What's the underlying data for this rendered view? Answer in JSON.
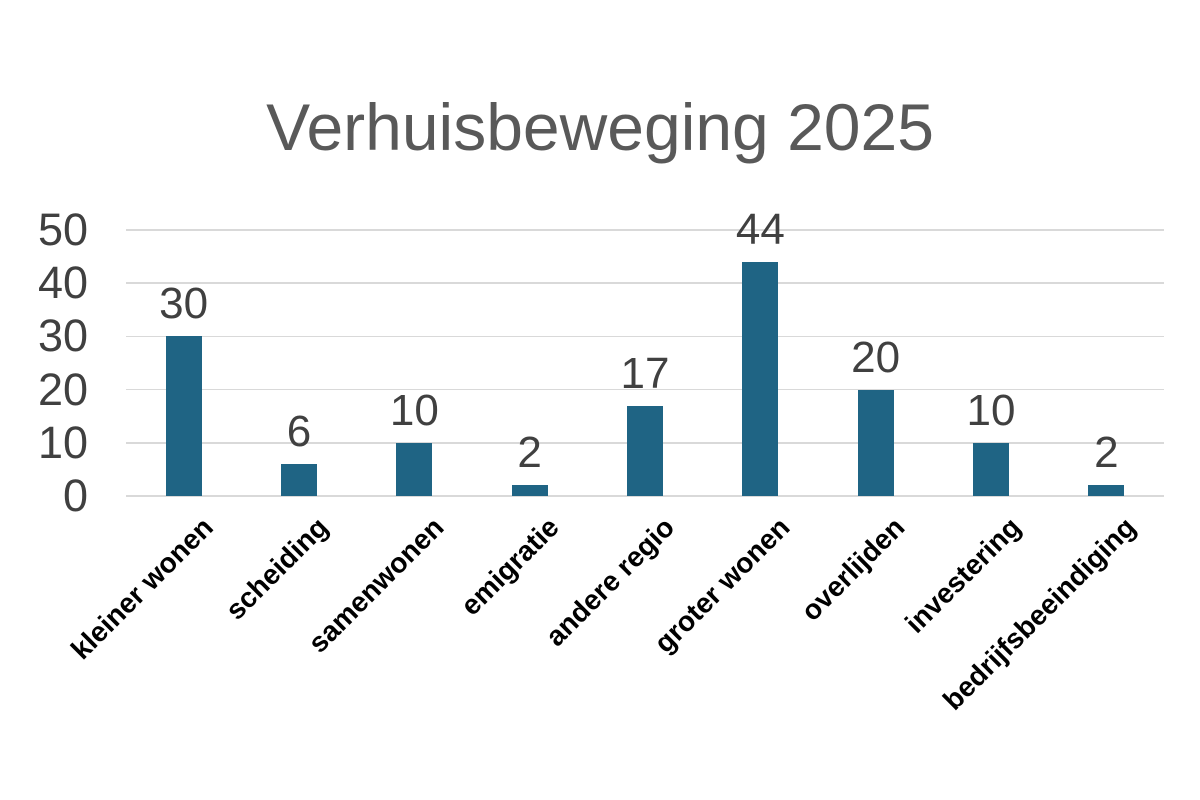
{
  "chart_data": {
    "type": "bar",
    "title": "Verhuisbeweging 2025",
    "categories": [
      "kleiner wonen",
      "scheiding",
      "samenwonen",
      "emigratie",
      "andere regio",
      "groter wonen",
      "overlijden",
      "investering",
      "bedrijfsbeeindiging"
    ],
    "values": [
      30,
      6,
      10,
      2,
      17,
      44,
      20,
      10,
      2
    ],
    "xlabel": "",
    "ylabel": "",
    "ylim": [
      0,
      50
    ],
    "yticks": [
      0,
      10,
      20,
      30,
      40,
      50
    ],
    "legend": "none",
    "grid": "horizontal",
    "data_labels": true,
    "colors": {
      "bar": "#1F6484",
      "title": "#595959",
      "axis_labels": "#404040",
      "value_labels": "#404040",
      "category_labels": "#000000",
      "gridline": "#D9D9D9",
      "background": "#FFFFFF"
    }
  }
}
